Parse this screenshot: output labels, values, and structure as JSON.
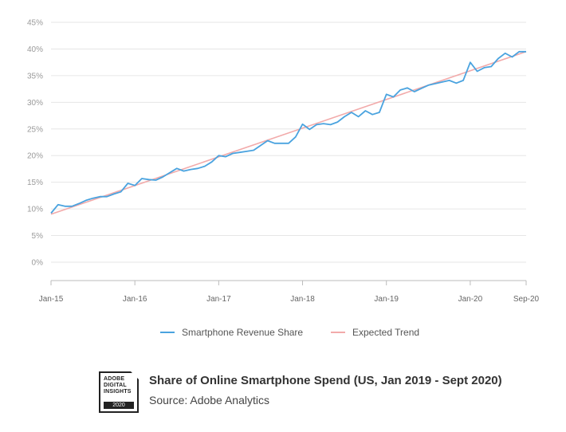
{
  "chart_data": {
    "type": "line",
    "title": "",
    "xlabel": "",
    "ylabel": "",
    "ylim": [
      0,
      45
    ],
    "yticks": [
      0,
      5,
      10,
      15,
      20,
      25,
      30,
      35,
      40,
      45
    ],
    "ytick_labels": [
      "0%",
      "5%",
      "10%",
      "15%",
      "20%",
      "25%",
      "30%",
      "35%",
      "40%",
      "45%"
    ],
    "xticks": [
      {
        "month": 0,
        "label": "Jan-15"
      },
      {
        "month": 12,
        "label": "Jan-16"
      },
      {
        "month": 24,
        "label": "Jan-17"
      },
      {
        "month": 36,
        "label": "Jan-18"
      },
      {
        "month": 48,
        "label": "Jan-19"
      },
      {
        "month": 60,
        "label": "Jan-20"
      },
      {
        "month": 68,
        "label": "Sep-20"
      }
    ],
    "grid": true,
    "legend_position": "bottom",
    "series": [
      {
        "name": "Smartphone Revenue Share",
        "color": "#4aa3df",
        "values": [
          9.2,
          10.8,
          10.5,
          10.5,
          11.0,
          11.6,
          12.0,
          12.3,
          12.3,
          12.8,
          13.2,
          14.8,
          14.4,
          15.7,
          15.5,
          15.4,
          16.0,
          16.8,
          17.6,
          17.1,
          17.4,
          17.6,
          18.0,
          18.8,
          20.0,
          19.8,
          20.4,
          20.6,
          20.8,
          21.0,
          21.9,
          22.8,
          22.3,
          22.3,
          22.3,
          23.5,
          25.9,
          24.9,
          25.8,
          26.0,
          25.8,
          26.3,
          27.3,
          28.1,
          27.3,
          28.4,
          27.7,
          28.1,
          31.5,
          31.0,
          32.3,
          32.7,
          32.0,
          32.6,
          33.2,
          33.5,
          33.8,
          34.1,
          33.6,
          34.1,
          37.5,
          35.8,
          36.5,
          36.7,
          38.2,
          39.2,
          38.5,
          39.5,
          39.5
        ],
        "dates": [
          "Jan-15",
          "Feb-15",
          "Mar-15",
          "Apr-15",
          "May-15",
          "Jun-15",
          "Jul-15",
          "Aug-15",
          "Sep-15",
          "Oct-15",
          "Nov-15",
          "Dec-15",
          "Jan-16",
          "Feb-16",
          "Mar-16",
          "Apr-16",
          "May-16",
          "Jun-16",
          "Jul-16",
          "Aug-16",
          "Sep-16",
          "Oct-16",
          "Nov-16",
          "Dec-16",
          "Jan-17",
          "Feb-17",
          "Mar-17",
          "Apr-17",
          "May-17",
          "Jun-17",
          "Jul-17",
          "Aug-17",
          "Sep-17",
          "Oct-17",
          "Nov-17",
          "Dec-17",
          "Jan-18",
          "Feb-18",
          "Mar-18",
          "Apr-18",
          "May-18",
          "Jun-18",
          "Jul-18",
          "Aug-18",
          "Sep-18",
          "Oct-18",
          "Nov-18",
          "Dec-18",
          "Jan-19",
          "Feb-19",
          "Mar-19",
          "Apr-19",
          "May-19",
          "Jun-19",
          "Jul-19",
          "Aug-19",
          "Sep-19",
          "Oct-19",
          "Nov-19",
          "Dec-19",
          "Jan-20",
          "Feb-20",
          "Mar-20",
          "Apr-20",
          "May-20",
          "Jun-20",
          "Jul-20",
          "Aug-20",
          "Sep-20"
        ]
      },
      {
        "name": "Expected Trend",
        "color": "#f2aaaa",
        "x_dates": [
          "Jan-15",
          "Sep-20"
        ],
        "values": [
          9.0,
          39.5
        ]
      }
    ]
  },
  "footer": {
    "badge_lines": [
      "ADOBE",
      "DIGITAL",
      "INSIGHTS"
    ],
    "badge_year": "2020",
    "title": "Share of Online Smartphone Spend (US, Jan 2019 - Sept 2020)",
    "source": "Source: Adobe Analytics"
  }
}
